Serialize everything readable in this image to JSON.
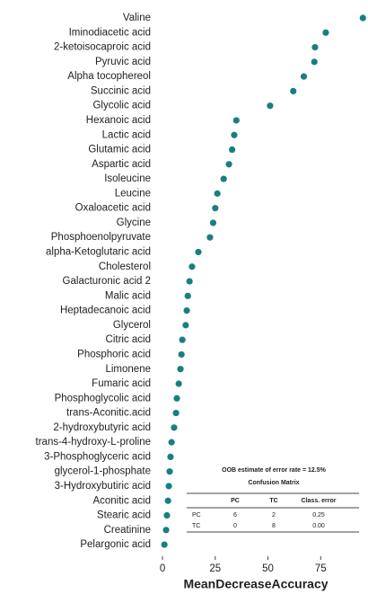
{
  "chart_data": {
    "type": "dot",
    "categories": [
      "Valine",
      "Iminodiacetic acid",
      "2-ketoisocaproic acid",
      "Pyruvic acid",
      "Alpha tocophereol",
      "Succinic acid",
      "Glycolic acid",
      "Hexanoic acid",
      "Lactic acid",
      "Glutamic acid",
      "Aspartic acid",
      "Isoleucine",
      "Leucine",
      "Oxaloacetic acid",
      "Glycine",
      "Phosphoenolpyruvate",
      "alpha-Ketoglutaric acid",
      "Cholesterol",
      "Galacturonic acid 2",
      "Malic acid",
      "Heptadecanoic acid",
      "Glycerol",
      "Citric acid",
      "Phosphoric acid",
      "Limonene",
      "Fumaric acid",
      "Phosphoglycolic acid",
      "trans-Aconitic.acid",
      "2-hydroxybutyric acid",
      "trans-4-hydroxy-L-proline",
      "3-Phosphoglyceric acid",
      "glycerol-1-phosphate",
      "3-Hydroxybutiric acid",
      "Aconitic acid",
      "Stearic acid",
      "Creatinine",
      "Pelargonic acid"
    ],
    "values": [
      95,
      77.4,
      72.3,
      72,
      67,
      62,
      51,
      35,
      34,
      33,
      31.5,
      29,
      26,
      25,
      24,
      22.5,
      17,
      14,
      12.8,
      12,
      11.5,
      11,
      9.4,
      9,
      8.5,
      7.7,
      6.8,
      6.4,
      5.5,
      4.3,
      3.8,
      3.4,
      3,
      2.6,
      2.1,
      1.7,
      0.9
    ],
    "color": "#17807e",
    "xlabel": "MeanDecreaseAccuracy",
    "xlim": [
      -3,
      97
    ],
    "xticks": [
      0,
      25,
      50,
      75
    ],
    "inset": {
      "title": "OOB estimate of error rate = 12.5%",
      "subtitle": "Confusion Matrix",
      "columns": [
        "PC",
        "TC",
        "Class. error"
      ],
      "rows": [
        [
          "PC",
          "6",
          "2",
          "0.25"
        ],
        [
          "TC",
          "0",
          "8",
          "0.00"
        ]
      ]
    }
  }
}
